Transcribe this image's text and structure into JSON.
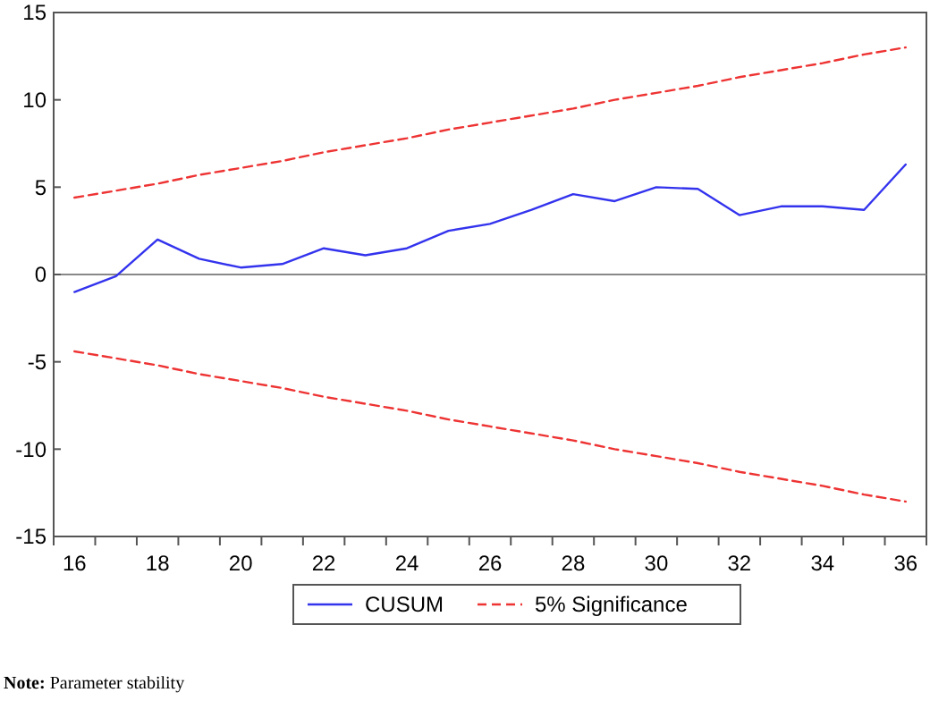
{
  "chart_data": {
    "type": "line",
    "categories": [
      "16",
      null,
      "18",
      null,
      "20",
      null,
      "22",
      null,
      "24",
      null,
      "26",
      null,
      "28",
      null,
      "30",
      null,
      "32",
      null,
      "34",
      null,
      "36"
    ],
    "series": [
      {
        "name": "CUSUM",
        "color": "#3333ee",
        "line_style": "solid",
        "values": [
          -1.0,
          -0.1,
          2.0,
          0.9,
          0.4,
          0.6,
          1.5,
          1.1,
          1.5,
          2.5,
          2.9,
          3.7,
          4.6,
          4.2,
          5.0,
          4.9,
          3.4,
          3.9,
          3.9,
          3.7,
          6.3
        ]
      },
      {
        "name": "5% Significance",
        "color": "#ee3333",
        "line_style": "dashed",
        "values": [
          4.4,
          4.8,
          5.2,
          5.7,
          6.1,
          6.5,
          7.0,
          7.4,
          7.8,
          8.3,
          8.7,
          9.1,
          9.5,
          10.0,
          10.4,
          10.8,
          11.3,
          11.7,
          12.1,
          12.6,
          13.0
        ]
      },
      {
        "color": "#ee3333",
        "line_style": "dashed",
        "values": [
          -4.4,
          -4.8,
          -5.2,
          -5.7,
          -6.1,
          -6.5,
          -7.0,
          -7.4,
          -7.8,
          -8.3,
          -8.7,
          -9.1,
          -9.5,
          -10.0,
          -10.4,
          -10.8,
          -11.3,
          -11.7,
          -12.1,
          -12.6,
          -13.0
        ]
      }
    ],
    "ylim": [
      -15,
      15
    ],
    "yticks": [
      -15,
      -10,
      -5,
      0,
      5,
      10,
      15
    ],
    "ref_lines": [
      {
        "axis": "y",
        "value": 0,
        "color": "#888888"
      }
    ],
    "grid": false,
    "legend": "bottom",
    "annotations": [
      "Note: Parameter stability"
    ]
  }
}
